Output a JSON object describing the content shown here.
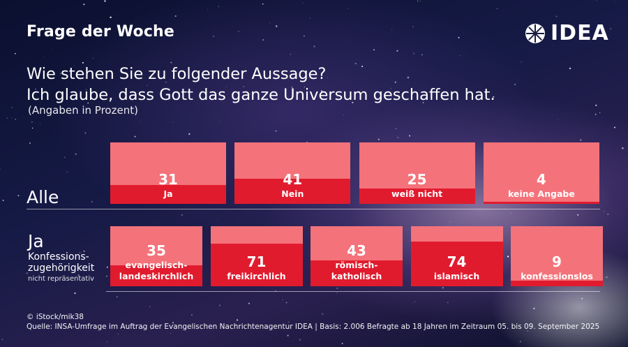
{
  "header": {
    "title": "Frage der Woche",
    "brand": "IDEA"
  },
  "question": {
    "line1": "Wie stehen Sie zu folgender Aussage?",
    "line2": "Ich glaube, dass Gott das ganze Universum geschaffen hat.",
    "unit_note": "(Angaben in Prozent)"
  },
  "rows": {
    "alle_label": "Alle",
    "ja_label": "Ja",
    "ja_sub_line1": "Konfessions-",
    "ja_sub_line2": "zugehörigkeit",
    "ja_note": "nicht repräsentativ"
  },
  "chart_data": [
    {
      "type": "bar",
      "group": "Alle",
      "categories": [
        "Ja",
        "Nein",
        "weiß nicht",
        "keine Angabe"
      ],
      "values": [
        31,
        41,
        25,
        4
      ],
      "unit": "Prozent",
      "ylim": [
        0,
        100
      ]
    },
    {
      "type": "bar",
      "group": "Ja – Konfessionszugehörigkeit",
      "categories": [
        "evangelisch-landeskirchlich",
        "freikirchlich",
        "römisch-katholisch",
        "islamisch",
        "konfessionslos"
      ],
      "label_lines": [
        [
          "evangelisch-",
          "landeskirchlich"
        ],
        [
          "freikirchlich"
        ],
        [
          "römisch-",
          "katholisch"
        ],
        [
          "islamisch"
        ],
        [
          "konfessionslos"
        ]
      ],
      "values": [
        35,
        71,
        43,
        74,
        9
      ],
      "unit": "Prozent",
      "ylim": [
        0,
        100
      ]
    }
  ],
  "colors": {
    "fill": "#e11b2e",
    "background_card": "#f4727a"
  },
  "footer": {
    "credit": "© iStock/mik38",
    "source": "Quelle: INSA-Umfrage im Auftrag der Evangelischen Nachrichtenagentur IDEA | Basis: 2.006 Befragte ab 18 Jahren im Zeitraum 05. bis 09. September 2025"
  }
}
